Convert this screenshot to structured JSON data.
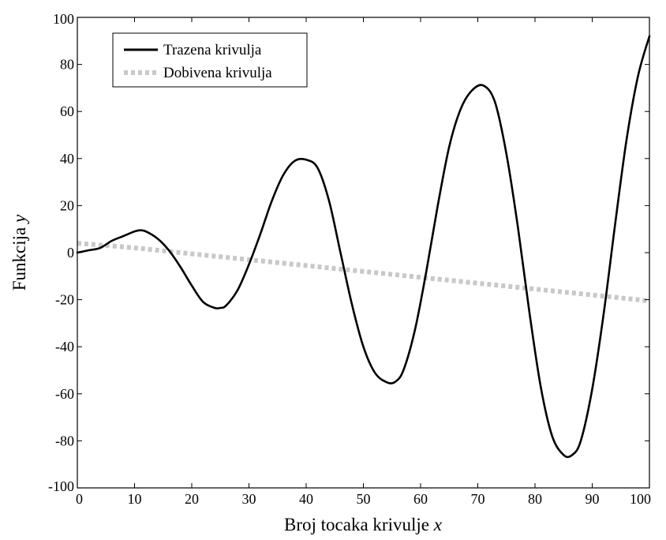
{
  "chart_data": {
    "type": "line",
    "title": "",
    "xlabel": "Broj tocaka krivulje x",
    "xlabel_main": "Broj tocaka krivulje ",
    "xlabel_var": "x",
    "ylabel": "Funkcija y",
    "ylabel_main": "Funkcija ",
    "ylabel_var": "y",
    "xlim": [
      0,
      100
    ],
    "ylim": [
      -100,
      100
    ],
    "xticks": [
      0,
      10,
      20,
      30,
      40,
      50,
      60,
      70,
      80,
      90,
      100
    ],
    "yticks": [
      -100,
      -80,
      -60,
      -40,
      -20,
      0,
      20,
      40,
      60,
      80,
      100
    ],
    "grid": false,
    "legend_position": "top-left",
    "series": [
      {
        "name": "Trazena krivulja",
        "color": "#000000",
        "style": "solid",
        "x": [
          0,
          2,
          4,
          6,
          8,
          10,
          11,
          12,
          14,
          16,
          18,
          20,
          22,
          24,
          25,
          26,
          28,
          30,
          32,
          34,
          36,
          38,
          40,
          42,
          44,
          46,
          48,
          50,
          52,
          54,
          55.5,
          57,
          59,
          61,
          63,
          65,
          67,
          69,
          71,
          73,
          75,
          77,
          79,
          81,
          83,
          85,
          86.5,
          88,
          90,
          92,
          94,
          96,
          98,
          100
        ],
        "y": [
          0,
          1,
          2,
          5,
          7,
          9,
          9.5,
          9,
          6,
          1,
          -6,
          -14,
          -21,
          -23.5,
          -23.5,
          -22.5,
          -16,
          -5,
          8,
          22,
          33,
          39,
          39.5,
          36,
          22,
          0,
          -22,
          -40,
          -51,
          -55,
          -55,
          -50,
          -33,
          -8,
          20,
          45,
          61,
          69,
          71,
          64,
          42,
          11,
          -25,
          -57,
          -78,
          -86,
          -86,
          -80,
          -58,
          -26,
          12,
          48,
          75,
          92
        ]
      },
      {
        "name": "Dobivena krivulja",
        "color": "#c8c8c8",
        "style": "dotted",
        "x": [
          0,
          10,
          20,
          30,
          40,
          50,
          60,
          70,
          80,
          90,
          100
        ],
        "y": [
          4,
          2,
          -0.5,
          -3,
          -5.5,
          -8,
          -10.5,
          -13,
          -15.5,
          -18,
          -20.5
        ]
      }
    ]
  }
}
